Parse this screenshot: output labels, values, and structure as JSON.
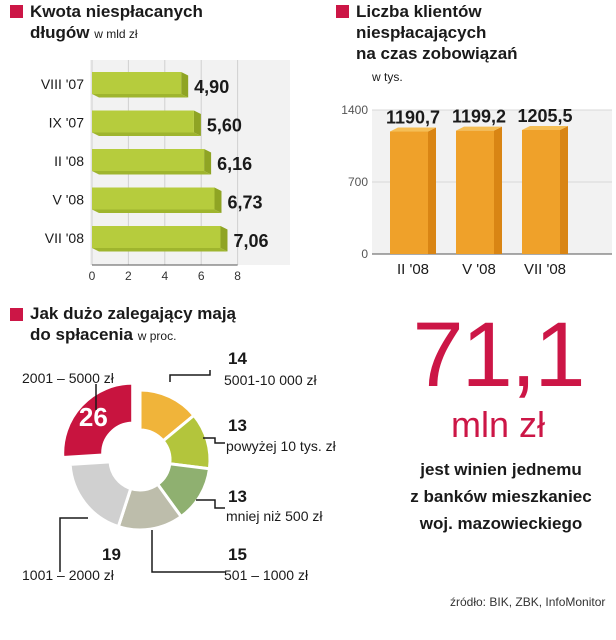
{
  "colors": {
    "accent": "#cc1646",
    "bar_green": "#b6cc3d",
    "bar_orange": "#efa12a",
    "pie_red": "#c8143f"
  },
  "chart1": {
    "title_line1": "Kwota niespłacanych",
    "title_line2": "długów",
    "unit": "w mld zł"
  },
  "chart2": {
    "title_line1": "Liczba klientów",
    "title_line2": "niespłacających",
    "title_line3": "na czas zobowiązań",
    "unit": "w tys."
  },
  "chart3": {
    "title_line1": "Jak dużo zalegający mają",
    "title_line2": "do spłacenia",
    "unit": "w proc."
  },
  "highlight": {
    "number": "71,1",
    "unit": "mln zł",
    "line1": "jest winien jednemu",
    "line2": "z banków mieszkaniec",
    "line3": "woj. mazowieckiego"
  },
  "source": "źródło: BIK, ZBK, InfoMonitor",
  "chart_data": [
    {
      "type": "bar",
      "orientation": "horizontal",
      "title": "Kwota niespłacanych długów",
      "subtitle": "w mld zł",
      "categories": [
        "VIII '07",
        "IX '07",
        "II '08",
        "V '08",
        "VII '08"
      ],
      "values": [
        4.9,
        5.6,
        6.16,
        6.73,
        7.06
      ],
      "value_labels": [
        "4,90",
        "5,60",
        "6,16",
        "6,73",
        "7,06"
      ],
      "xlim": [
        0,
        8
      ],
      "xticks": [
        "0",
        "2",
        "4",
        "6",
        "8"
      ]
    },
    {
      "type": "bar",
      "orientation": "vertical",
      "title": "Liczba klientów niespłacających na czas zobowiązań",
      "subtitle": "w tys.",
      "categories": [
        "II '08",
        "V '08",
        "VII '08"
      ],
      "values": [
        1190.7,
        1199.2,
        1205.5
      ],
      "value_labels": [
        "1190,7",
        "1199,2",
        "1205,5"
      ],
      "ylim": [
        0,
        1400
      ],
      "yticks": [
        "0",
        "700",
        "1400"
      ]
    },
    {
      "type": "pie",
      "title": "Jak dużo zalegający mają do spłacenia",
      "subtitle": "w proc.",
      "slices": [
        {
          "label": "2001 – 5000 zł",
          "value": 26,
          "value_label": "26"
        },
        {
          "label": "5001-10 000 zł",
          "value": 14,
          "value_label": "14"
        },
        {
          "label": "powyżej 10 tys. zł",
          "value": 13,
          "value_label": "13"
        },
        {
          "label": "mniej niż 500 zł",
          "value": 13,
          "value_label": "13"
        },
        {
          "label": "501 – 1000 zł",
          "value": 15,
          "value_label": "15"
        },
        {
          "label": "1001 – 2000 zł",
          "value": 19,
          "value_label": "19"
        }
      ]
    }
  ]
}
